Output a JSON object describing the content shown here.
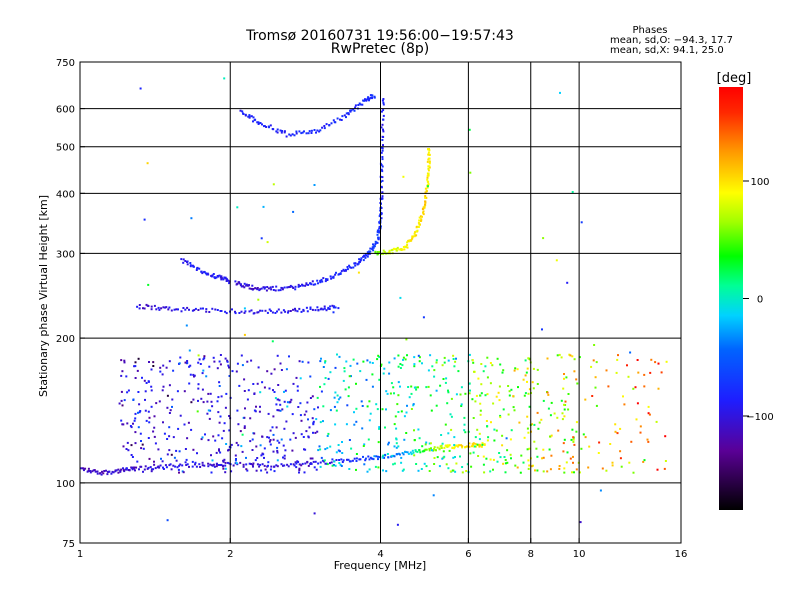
{
  "title": "Tromsø 20160731 19:56:00−19:57:43",
  "subtitle": "RwPretec (8p)",
  "phases_box": {
    "heading": "Phases",
    "line_o": "mean, sd,O: −94.3, 17.7",
    "line_x": "mean, sd,X:  94.1, 25.0"
  },
  "colorbar": {
    "title": "[deg]",
    "ticks": [
      {
        "value": 100,
        "label": "100"
      },
      {
        "value": 0,
        "label": "0"
      },
      {
        "value": -100,
        "label": "−100"
      }
    ],
    "range": [
      -180,
      180
    ]
  },
  "chart_data": {
    "type": "scatter",
    "title": "Tromsø 20160731 19:56:00−19:57:43",
    "subtitle": "RwPretec (8p)",
    "xlabel": "Frequency [MHz]",
    "ylabel": "Stationary phase Virtual Height [km]",
    "x_scale": "log",
    "y_scale": "log",
    "xlim": [
      1,
      16
    ],
    "ylim": [
      75,
      750
    ],
    "x_ticks": [
      1,
      2,
      4,
      6,
      8,
      10,
      16
    ],
    "y_ticks": [
      75,
      100,
      200,
      300,
      400,
      500,
      600,
      750
    ],
    "x_gridlines": [
      2,
      4,
      6,
      8,
      10
    ],
    "y_gridlines": [
      100,
      200,
      300,
      400,
      500,
      600
    ],
    "color_variable": "phase [deg]",
    "traces": [
      {
        "points": [
          [
            1.0,
            107
          ],
          [
            1.1,
            105
          ],
          [
            1.2,
            106
          ],
          [
            1.3,
            107
          ],
          [
            1.5,
            108
          ],
          [
            1.8,
            109
          ],
          [
            2.0,
            109
          ],
          [
            2.5,
            109
          ],
          [
            3.0,
            110
          ],
          [
            3.5,
            112
          ],
          [
            4.0,
            113
          ],
          [
            4.5,
            115
          ],
          [
            5.0,
            117
          ],
          [
            5.5,
            119
          ],
          [
            6.0,
            120
          ],
          [
            6.5,
            120
          ]
        ],
        "phase": [
          -120,
          -118,
          -115,
          -112,
          -110,
          -110,
          -112,
          -110,
          -105,
          -95,
          -80,
          -40,
          60,
          100,
          110,
          110
        ]
      },
      {
        "points": [
          [
            2.05,
            260
          ],
          [
            2.2,
            255
          ],
          [
            2.4,
            253
          ],
          [
            2.7,
            255
          ],
          [
            3.0,
            262
          ],
          [
            3.3,
            272
          ],
          [
            3.6,
            287
          ],
          [
            3.8,
            300
          ],
          [
            3.95,
            320
          ],
          [
            4.0,
            350
          ],
          [
            4.02,
            400
          ],
          [
            4.03,
            500
          ],
          [
            4.05,
            640
          ]
        ],
        "phase": [
          -110,
          -112,
          -110,
          -105,
          -100,
          -95,
          -95,
          -90,
          -85,
          -90,
          -95,
          -100,
          -100
        ]
      },
      {
        "points": [
          [
            3.9,
            300
          ],
          [
            4.2,
            302
          ],
          [
            4.5,
            310
          ],
          [
            4.7,
            330
          ],
          [
            4.85,
            360
          ],
          [
            4.95,
            400
          ],
          [
            5.0,
            450
          ],
          [
            5.0,
            500
          ]
        ],
        "phase": [
          60,
          90,
          100,
          105,
          110,
          110,
          105,
          100
        ]
      },
      {
        "points": [
          [
            2.1,
            590
          ],
          [
            2.3,
            560
          ],
          [
            2.6,
            530
          ],
          [
            3.0,
            540
          ],
          [
            3.4,
            580
          ],
          [
            3.7,
            620
          ],
          [
            3.9,
            640
          ]
        ],
        "phase": [
          -100,
          -98,
          -96,
          -95,
          -95,
          -92,
          -90
        ]
      },
      {
        "points": [
          [
            1.6,
            290
          ],
          [
            1.75,
            275
          ],
          [
            1.9,
            268
          ],
          [
            2.0,
            262
          ]
        ],
        "phase": [
          -100,
          -100,
          -105,
          -108
        ]
      },
      {
        "points": [
          [
            1.3,
            233
          ],
          [
            1.5,
            230
          ],
          [
            1.8,
            228
          ],
          [
            2.2,
            227
          ],
          [
            2.6,
            228
          ],
          [
            3.0,
            230
          ],
          [
            3.3,
            232
          ]
        ],
        "phase": [
          -110,
          -110,
          -108,
          -105,
          -108,
          -105,
          -100
        ]
      }
    ],
    "scatter_region": {
      "x": [
        1.2,
        15
      ],
      "y": [
        105,
        185
      ],
      "phase_range": [
        -130,
        140
      ]
    }
  }
}
